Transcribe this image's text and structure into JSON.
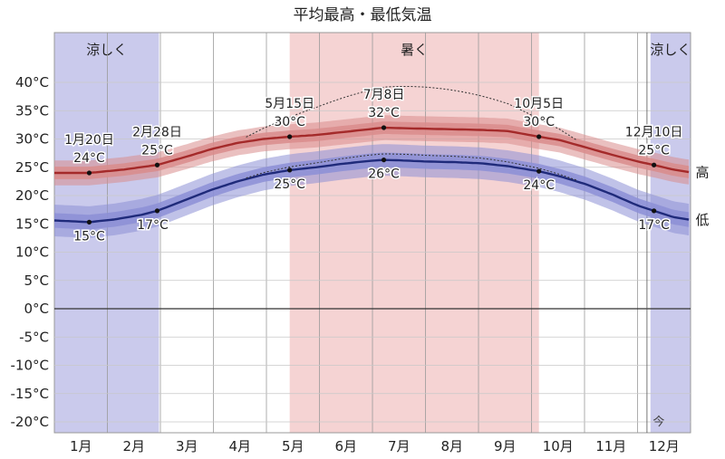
{
  "chart_data": {
    "type": "line",
    "title": "平均最高・最低気温",
    "xlabel": "",
    "ylabel": "",
    "ylim": [
      -20,
      40
    ],
    "yticks": [
      40,
      35,
      30,
      25,
      20,
      15,
      10,
      5,
      0,
      -5,
      -10,
      -15,
      -20
    ],
    "ytick_labels": [
      "40°C",
      "35°C",
      "30°C",
      "25°C",
      "20°C",
      "15°C",
      "10°C",
      "5°C",
      "0°C",
      "-5°C",
      "-10°C",
      "-15°C",
      "-20°C"
    ],
    "month_labels": [
      "1月",
      "2月",
      "3月",
      "4月",
      "5月",
      "6月",
      "7月",
      "8月",
      "9月",
      "10月",
      "11月",
      "12月"
    ],
    "seasons": [
      {
        "label": "涼しく",
        "start_day": 0,
        "end_day": 60,
        "color": "#b8b8e6"
      },
      {
        "label": "暑く",
        "start_day": 135,
        "end_day": 278,
        "color": "#f2c4c4"
      },
      {
        "label": "涼しく",
        "start_day": 342,
        "end_day": 365,
        "color": "#b8b8e6"
      }
    ],
    "series": [
      {
        "name": "高",
        "color": "#a42a2a",
        "band_color": "#d98c8c",
        "points": [
          [
            0,
            24
          ],
          [
            20,
            24
          ],
          [
            40,
            24.6
          ],
          [
            59,
            25.4
          ],
          [
            75,
            26.8
          ],
          [
            90,
            28.2
          ],
          [
            105,
            29.3
          ],
          [
            120,
            30
          ],
          [
            135,
            30.4
          ],
          [
            150,
            30.7
          ],
          [
            165,
            31.2
          ],
          [
            180,
            31.7
          ],
          [
            189,
            32
          ],
          [
            200,
            31.9
          ],
          [
            215,
            31.8
          ],
          [
            230,
            31.7
          ],
          [
            245,
            31.6
          ],
          [
            260,
            31.4
          ],
          [
            278,
            30.4
          ],
          [
            290,
            29.8
          ],
          [
            305,
            28.5
          ],
          [
            320,
            27.2
          ],
          [
            335,
            26
          ],
          [
            344,
            25.4
          ],
          [
            355,
            24.6
          ],
          [
            365,
            24.1
          ]
        ],
        "p90_offset": 2.2,
        "p75_offset": 1.1,
        "annotations": [
          {
            "day": 20,
            "value": 24,
            "date": "1月20日",
            "temp": "24°C"
          },
          {
            "day": 59,
            "value": 25.4,
            "date": "2月28日",
            "temp": "25°C"
          },
          {
            "day": 135,
            "value": 30.4,
            "date": "5月15日",
            "temp": "30°C"
          },
          {
            "day": 189,
            "value": 32,
            "date": "7月8日",
            "temp": "32°C"
          },
          {
            "day": 278,
            "value": 30.4,
            "date": "10月5日",
            "temp": "30°C"
          },
          {
            "day": 344,
            "value": 25.4,
            "date": "12月10日",
            "temp": "25°C"
          }
        ]
      },
      {
        "name": "低",
        "color": "#1f2a7a",
        "band_color": "#8c8fd6",
        "points": [
          [
            0,
            15.6
          ],
          [
            20,
            15.3
          ],
          [
            35,
            15.8
          ],
          [
            50,
            16.6
          ],
          [
            59,
            17.3
          ],
          [
            75,
            19.2
          ],
          [
            90,
            21
          ],
          [
            105,
            22.5
          ],
          [
            120,
            23.7
          ],
          [
            135,
            24.5
          ],
          [
            150,
            25
          ],
          [
            165,
            25.6
          ],
          [
            180,
            26.1
          ],
          [
            189,
            26.3
          ],
          [
            200,
            26.2
          ],
          [
            215,
            26
          ],
          [
            230,
            25.9
          ],
          [
            245,
            25.7
          ],
          [
            260,
            25.2
          ],
          [
            278,
            24.3
          ],
          [
            290,
            23.4
          ],
          [
            305,
            22
          ],
          [
            320,
            20.2
          ],
          [
            335,
            18.2
          ],
          [
            344,
            17.3
          ],
          [
            355,
            16.2
          ],
          [
            365,
            15.7
          ]
        ],
        "p90_offset": 2.8,
        "p75_offset": 1.3,
        "annotations": [
          {
            "day": 20,
            "value": 15.3,
            "date": "",
            "temp": "15°C"
          },
          {
            "day": 59,
            "value": 17.3,
            "date": "",
            "temp": "17°C"
          },
          {
            "day": 135,
            "value": 24.5,
            "date": "",
            "temp": "25°C"
          },
          {
            "day": 189,
            "value": 26.3,
            "date": "",
            "temp": "26°C"
          },
          {
            "day": 278,
            "value": 24.3,
            "date": "",
            "temp": "24°C"
          },
          {
            "day": 344,
            "value": 17.3,
            "date": "",
            "temp": "17°C"
          }
        ]
      }
    ],
    "today_marker": {
      "label": "今",
      "day": 340
    },
    "grid": true
  }
}
